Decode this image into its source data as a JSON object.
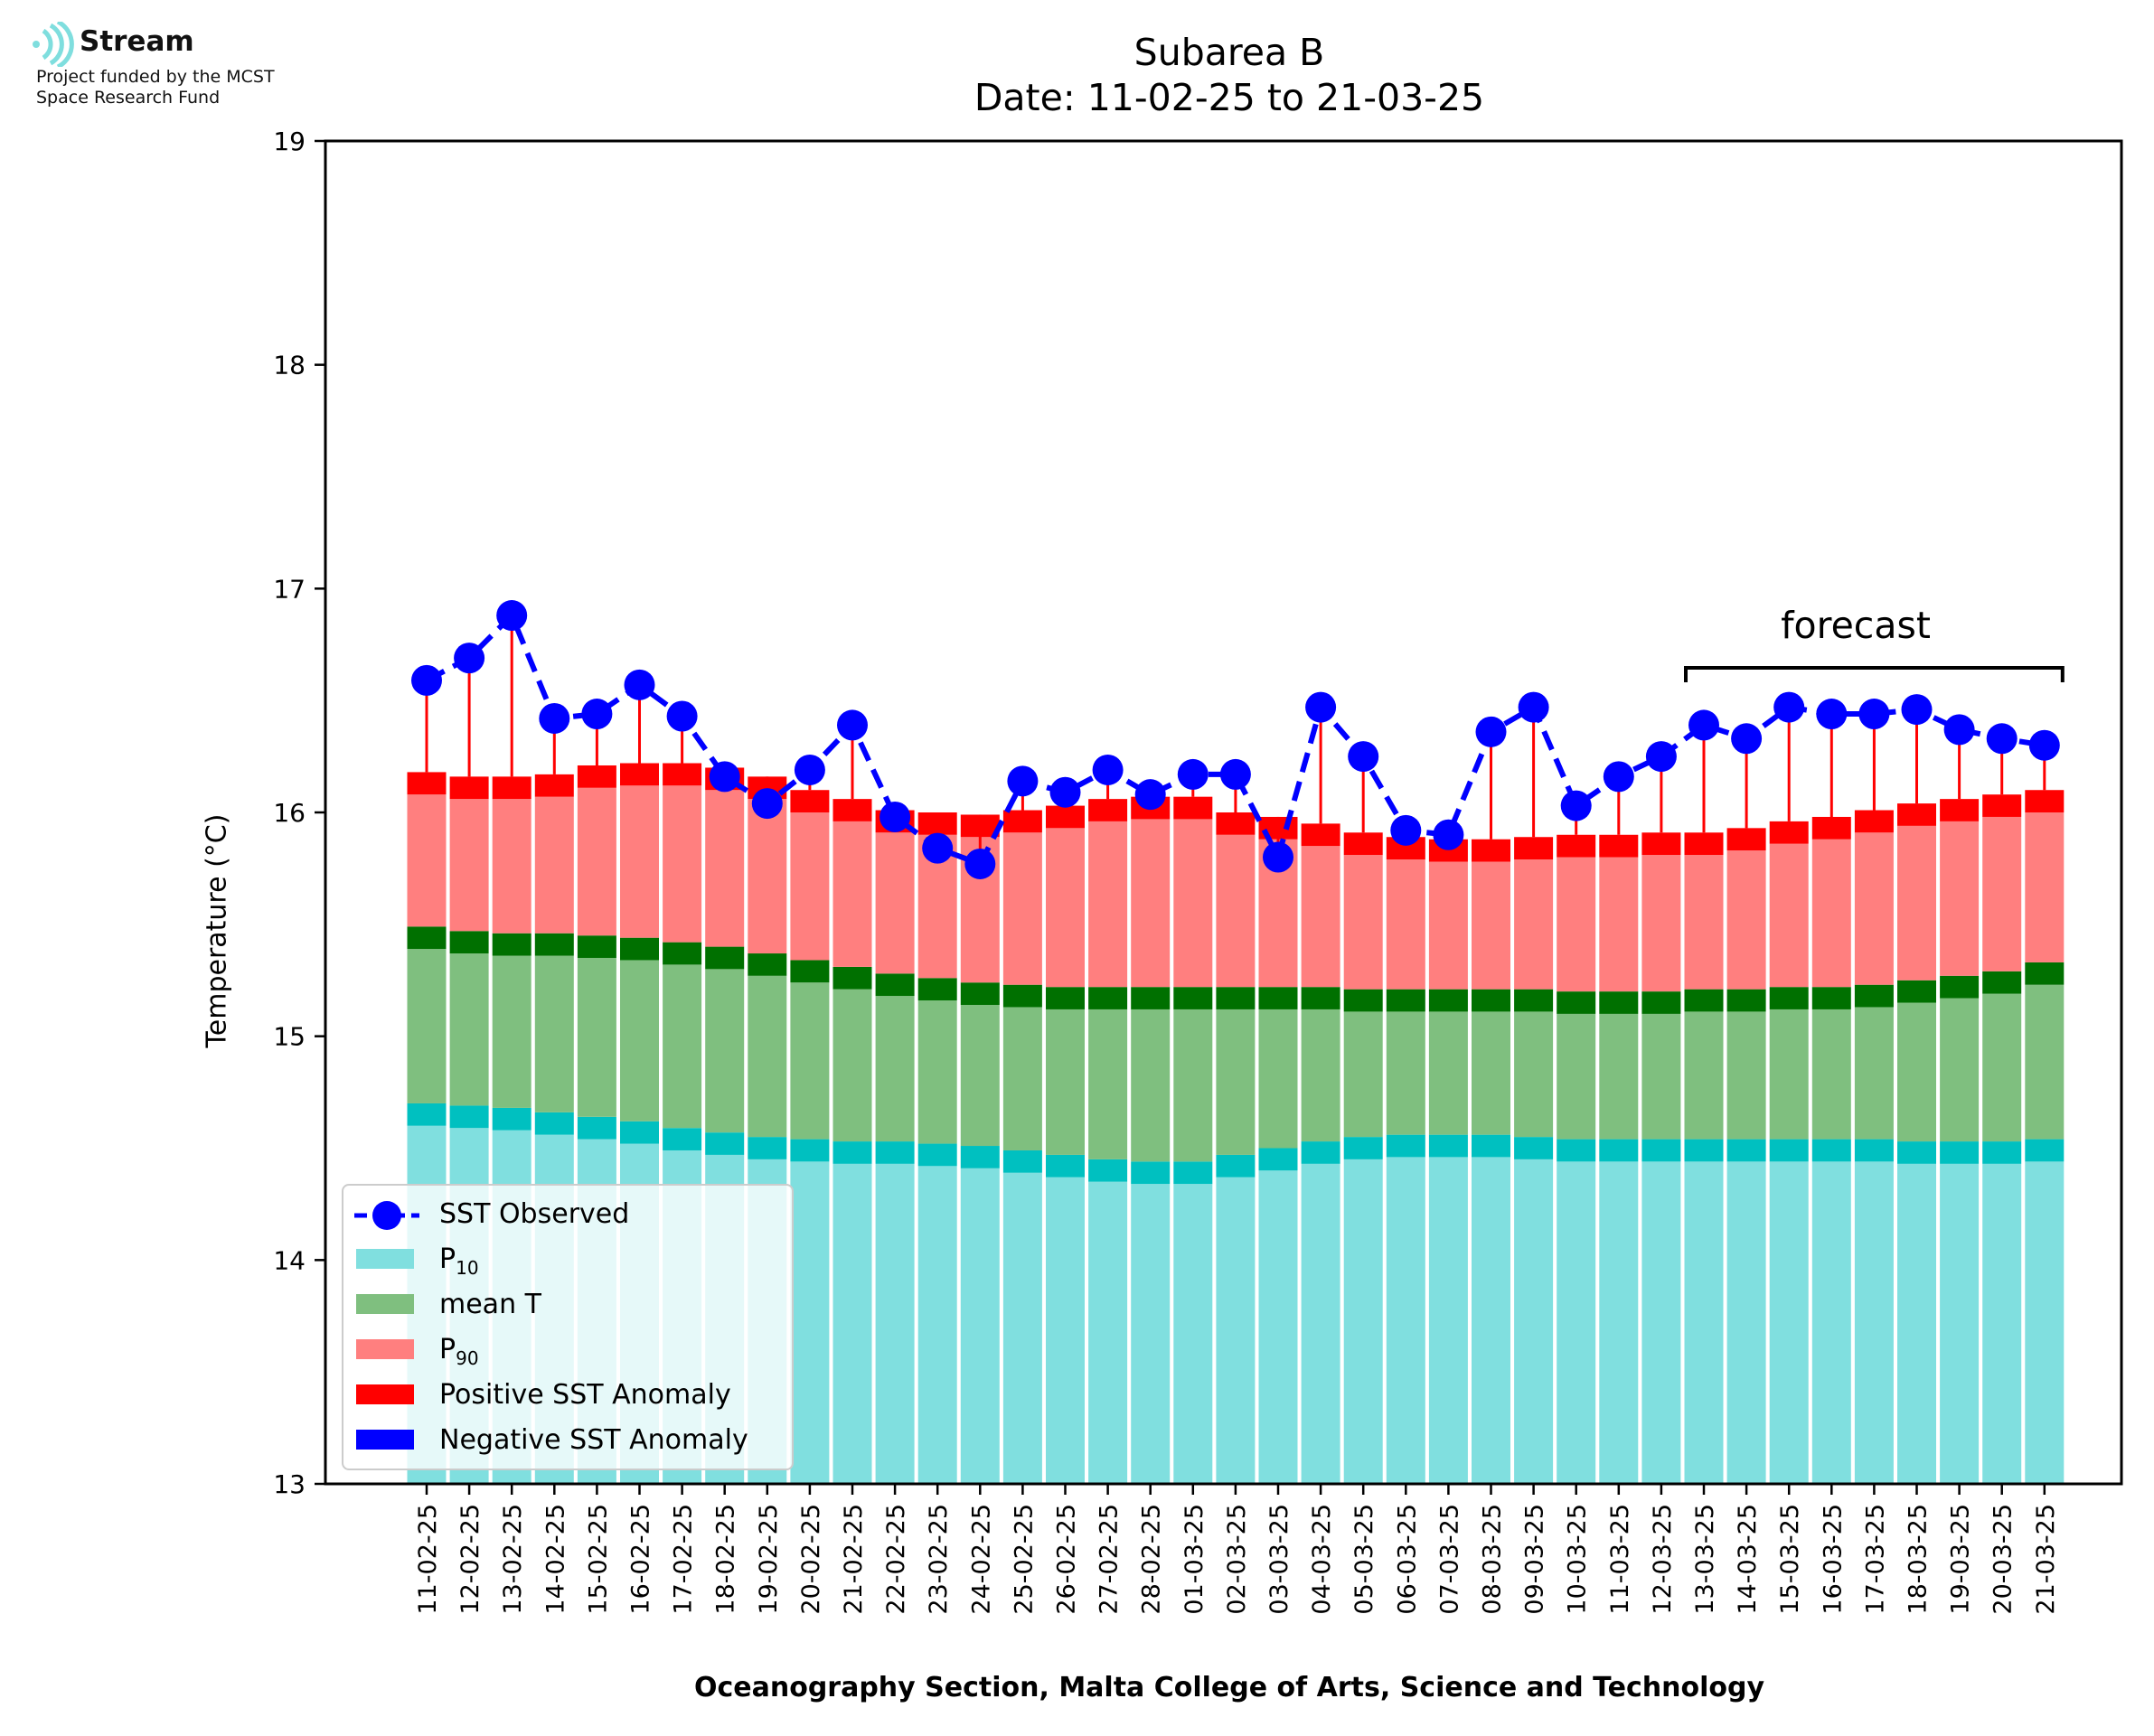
{
  "logo": {
    "brand": "Stream",
    "line1": "Project funded by the MCST",
    "line2": "Space Research Fund"
  },
  "colors": {
    "p10": "#80dfdf",
    "p10_top": "#00c0c0",
    "mean": "#7fbf7f",
    "mean_top": "#007000",
    "p90": "#ff7f7f",
    "p90_top": "#ff0000",
    "positive_anomaly": "#ff0000",
    "negative_anomaly": "#0000ff",
    "observed": "#0000ff"
  },
  "chart_data": {
    "type": "bar",
    "title": "Subarea B",
    "subtitle": "Date: 11-02-25 to 21-03-25",
    "xlabel": "Oceanography Section, Malta College of Arts, Science and Technology",
    "ylabel": "Temperature (°C)",
    "ylim": [
      13,
      19
    ],
    "yticks": [
      13,
      14,
      15,
      16,
      17,
      18,
      19
    ],
    "grid": false,
    "legend_position": "bottom-left",
    "categories": [
      "11-02-25",
      "12-02-25",
      "13-02-25",
      "14-02-25",
      "15-02-25",
      "16-02-25",
      "17-02-25",
      "18-02-25",
      "19-02-25",
      "20-02-25",
      "21-02-25",
      "22-02-25",
      "23-02-25",
      "24-02-25",
      "25-02-25",
      "26-02-25",
      "27-02-25",
      "28-02-25",
      "01-03-25",
      "02-03-25",
      "03-03-25",
      "04-03-25",
      "05-03-25",
      "06-03-25",
      "07-03-25",
      "08-03-25",
      "09-03-25",
      "10-03-25",
      "11-03-25",
      "12-03-25",
      "13-03-25",
      "14-03-25",
      "15-03-25",
      "16-03-25",
      "17-03-25",
      "18-03-25",
      "19-03-25",
      "20-03-25",
      "21-03-25"
    ],
    "series": [
      {
        "name": "P10",
        "values": [
          14.7,
          14.69,
          14.68,
          14.66,
          14.64,
          14.62,
          14.59,
          14.57,
          14.55,
          14.54,
          14.53,
          14.53,
          14.52,
          14.51,
          14.49,
          14.47,
          14.45,
          14.44,
          14.44,
          14.47,
          14.5,
          14.53,
          14.55,
          14.56,
          14.56,
          14.56,
          14.55,
          14.54,
          14.54,
          14.54,
          14.54,
          14.54,
          14.54,
          14.54,
          14.54,
          14.53,
          14.53,
          14.53,
          14.54
        ]
      },
      {
        "name": "mean T",
        "values": [
          15.49,
          15.47,
          15.46,
          15.46,
          15.45,
          15.44,
          15.42,
          15.4,
          15.37,
          15.34,
          15.31,
          15.28,
          15.26,
          15.24,
          15.23,
          15.22,
          15.22,
          15.22,
          15.22,
          15.22,
          15.22,
          15.22,
          15.21,
          15.21,
          15.21,
          15.21,
          15.21,
          15.2,
          15.2,
          15.2,
          15.21,
          15.21,
          15.22,
          15.22,
          15.23,
          15.25,
          15.27,
          15.29,
          15.33
        ]
      },
      {
        "name": "P90",
        "values": [
          16.18,
          16.16,
          16.16,
          16.17,
          16.21,
          16.22,
          16.22,
          16.2,
          16.16,
          16.1,
          16.06,
          16.01,
          16.0,
          15.99,
          16.01,
          16.03,
          16.06,
          16.07,
          16.07,
          16.0,
          15.98,
          15.95,
          15.91,
          15.89,
          15.88,
          15.88,
          15.89,
          15.9,
          15.9,
          15.91,
          15.91,
          15.93,
          15.96,
          15.98,
          16.01,
          16.04,
          16.06,
          16.08,
          16.1
        ]
      },
      {
        "name": "SST Observed",
        "values": [
          16.59,
          16.69,
          16.88,
          16.42,
          16.44,
          16.57,
          16.43,
          16.16,
          16.04,
          16.19,
          16.39,
          15.98,
          15.84,
          15.77,
          16.14,
          16.09,
          16.19,
          16.08,
          16.17,
          16.17,
          15.8,
          16.47,
          16.25,
          15.92,
          15.9,
          16.36,
          16.47,
          16.03,
          16.16,
          16.25,
          16.39,
          16.33,
          16.47,
          16.44,
          16.44,
          16.46,
          16.37,
          16.33,
          16.3
        ]
      }
    ],
    "legend": [
      "SST Observed",
      "P10",
      "mean T",
      "P90",
      "Positive SST Anomaly",
      "Negative SST Anomaly"
    ],
    "annotation": "forecast",
    "forecast_range": [
      "13-03-25",
      "21-03-25"
    ]
  },
  "legend_labels": {
    "observed": "SST Observed",
    "p10_main": "P",
    "p10_sub": "10",
    "mean": "mean T",
    "p90_main": "P",
    "p90_sub": "90",
    "positive": "Positive SST Anomaly",
    "negative": "Negative SST Anomaly"
  }
}
